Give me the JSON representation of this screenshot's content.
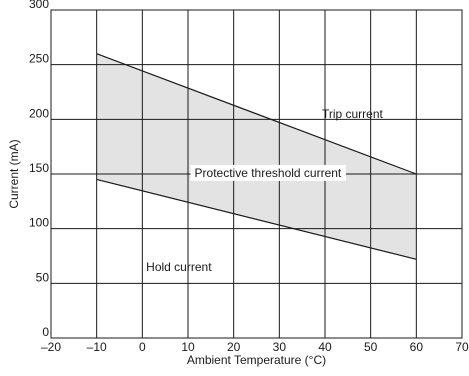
{
  "chart_data": {
    "type": "area",
    "title": "",
    "xlabel": "Ambient Temperature (°C)",
    "ylabel": "Current (mA)",
    "xlim": [
      -20,
      70
    ],
    "ylim": [
      0,
      300
    ],
    "x_ticks": [
      -20,
      -10,
      0,
      10,
      20,
      30,
      40,
      50,
      60,
      70
    ],
    "x_tick_labels": [
      "–20",
      "–10",
      "0",
      "10",
      "20",
      "30",
      "40",
      "50",
      "60",
      "70"
    ],
    "y_ticks": [
      0,
      50,
      100,
      150,
      200,
      250,
      300
    ],
    "y_tick_labels": [
      "0",
      "50",
      "100",
      "150",
      "200",
      "250",
      "300"
    ],
    "grid": true,
    "series": [
      {
        "name": "Trip current",
        "x": [
          -10,
          60
        ],
        "y": [
          260,
          150
        ]
      },
      {
        "name": "Hold current",
        "x": [
          -10,
          60
        ],
        "y": [
          145,
          72
        ]
      }
    ],
    "shaded_region": {
      "between": [
        "Trip current",
        "Hold current"
      ],
      "x": [
        -10,
        60
      ],
      "color": "#e3e3e3"
    },
    "annotations": [
      {
        "text": "Trip current",
        "x": 46,
        "y": 205,
        "anchor": "middle"
      },
      {
        "text": "Protective threshold current",
        "x": 27.5,
        "y": 151,
        "anchor": "middle",
        "boxed": true
      },
      {
        "text": "Hold current",
        "x": 8,
        "y": 65,
        "anchor": "middle"
      }
    ],
    "colors": {
      "line": "#1a1a1a",
      "grid": "#1a1a1a",
      "fill": "#e3e3e3",
      "background": "#ffffff"
    }
  }
}
